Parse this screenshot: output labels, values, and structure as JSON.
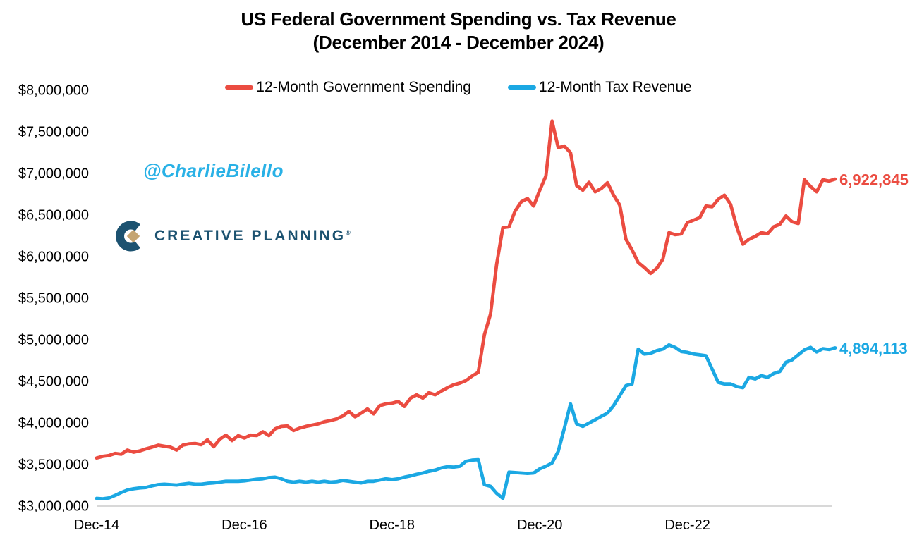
{
  "title": {
    "line1": "US Federal Government Spending vs. Tax Revenue",
    "line2": "(December 2014 - December 2024)"
  },
  "legend": [
    {
      "label": "12-Month Government Spending",
      "color": "#EB4C41"
    },
    {
      "label": "12-Month Tax Revenue",
      "color": "#1BA8E3"
    }
  ],
  "watermarks": {
    "handle": "@CharlieBilello",
    "handle_color": "#29B1E6",
    "brand": "CREATIVE PLANNING",
    "brand_reg": "®",
    "brand_color": "#1C5270",
    "brand_gold": "#C5A572"
  },
  "axis": {
    "line_color": "#D8D8D8",
    "label_color": "#000000"
  },
  "chart_data": {
    "type": "line",
    "title": "US Federal Government Spending vs. Tax Revenue (December 2014 - December 2024)",
    "x_unit": "months, Dec-2014 through Dec-2024 (121 monthly points)",
    "x_ticks": [
      {
        "index": 0,
        "label": "Dec-14"
      },
      {
        "index": 24,
        "label": "Dec-16"
      },
      {
        "index": 48,
        "label": "Dec-18"
      },
      {
        "index": 72,
        "label": "Dec-20"
      },
      {
        "index": 96,
        "label": "Dec-22"
      }
    ],
    "ylim": [
      3000000,
      8000000
    ],
    "y_tick_step": 500000,
    "y_tick_prefix": "$",
    "grid": false,
    "legend_position": "top",
    "series": [
      {
        "name": "12-Month Government Spending",
        "color": "#EB4C41",
        "end_label": "6,922,845",
        "end_value": 6922845,
        "values": [
          3570000,
          3590000,
          3600000,
          3625000,
          3615000,
          3665000,
          3640000,
          3655000,
          3680000,
          3700000,
          3725000,
          3712000,
          3700000,
          3665000,
          3725000,
          3740000,
          3745000,
          3730000,
          3788000,
          3705000,
          3795000,
          3845000,
          3780000,
          3838000,
          3810000,
          3845000,
          3840000,
          3885000,
          3840000,
          3920000,
          3950000,
          3955000,
          3900000,
          3930000,
          3950000,
          3965000,
          3980000,
          4005000,
          4020000,
          4040000,
          4075000,
          4130000,
          4065000,
          4110000,
          4160000,
          4100000,
          4200000,
          4220000,
          4230000,
          4250000,
          4190000,
          4290000,
          4330000,
          4290000,
          4355000,
          4330000,
          4375000,
          4415000,
          4450000,
          4470000,
          4500000,
          4555000,
          4600000,
          5050000,
          5300000,
          5900000,
          6340000,
          6350000,
          6540000,
          6650000,
          6690000,
          6600000,
          6790000,
          6960000,
          7620000,
          7300000,
          7320000,
          7240000,
          6845000,
          6790000,
          6885000,
          6770000,
          6810000,
          6880000,
          6730000,
          6610000,
          6200000,
          6070000,
          5920000,
          5860000,
          5790000,
          5850000,
          5960000,
          6280000,
          6255000,
          6265000,
          6400000,
          6430000,
          6460000,
          6600000,
          6590000,
          6680000,
          6730000,
          6620000,
          6350000,
          6140000,
          6200000,
          6235000,
          6280000,
          6265000,
          6350000,
          6380000,
          6480000,
          6410000,
          6390000,
          6915000,
          6835000,
          6770000,
          6915000,
          6900000,
          6922845
        ]
      },
      {
        "name": "12-Month Tax Revenue",
        "color": "#1BA8E3",
        "end_label": "4,894,113",
        "end_value": 4894113,
        "values": [
          3085000,
          3080000,
          3090000,
          3120000,
          3155000,
          3185000,
          3200000,
          3210000,
          3215000,
          3235000,
          3250000,
          3255000,
          3250000,
          3245000,
          3255000,
          3265000,
          3255000,
          3255000,
          3265000,
          3270000,
          3280000,
          3290000,
          3290000,
          3290000,
          3295000,
          3305000,
          3315000,
          3320000,
          3335000,
          3340000,
          3320000,
          3290000,
          3280000,
          3290000,
          3280000,
          3290000,
          3280000,
          3290000,
          3280000,
          3285000,
          3300000,
          3290000,
          3280000,
          3270000,
          3290000,
          3290000,
          3305000,
          3320000,
          3310000,
          3320000,
          3340000,
          3355000,
          3375000,
          3390000,
          3410000,
          3425000,
          3450000,
          3465000,
          3460000,
          3470000,
          3530000,
          3545000,
          3550000,
          3250000,
          3230000,
          3145000,
          3085000,
          3400000,
          3395000,
          3390000,
          3385000,
          3390000,
          3440000,
          3470000,
          3510000,
          3650000,
          3930000,
          4220000,
          3980000,
          3950000,
          3990000,
          4030000,
          4070000,
          4110000,
          4200000,
          4320000,
          4440000,
          4460000,
          4880000,
          4820000,
          4830000,
          4860000,
          4880000,
          4930000,
          4900000,
          4850000,
          4840000,
          4820000,
          4810000,
          4800000,
          4640000,
          4480000,
          4460000,
          4460000,
          4430000,
          4415000,
          4540000,
          4520000,
          4560000,
          4540000,
          4585000,
          4610000,
          4720000,
          4750000,
          4810000,
          4870000,
          4900000,
          4845000,
          4885000,
          4875000,
          4894113
        ]
      }
    ]
  }
}
